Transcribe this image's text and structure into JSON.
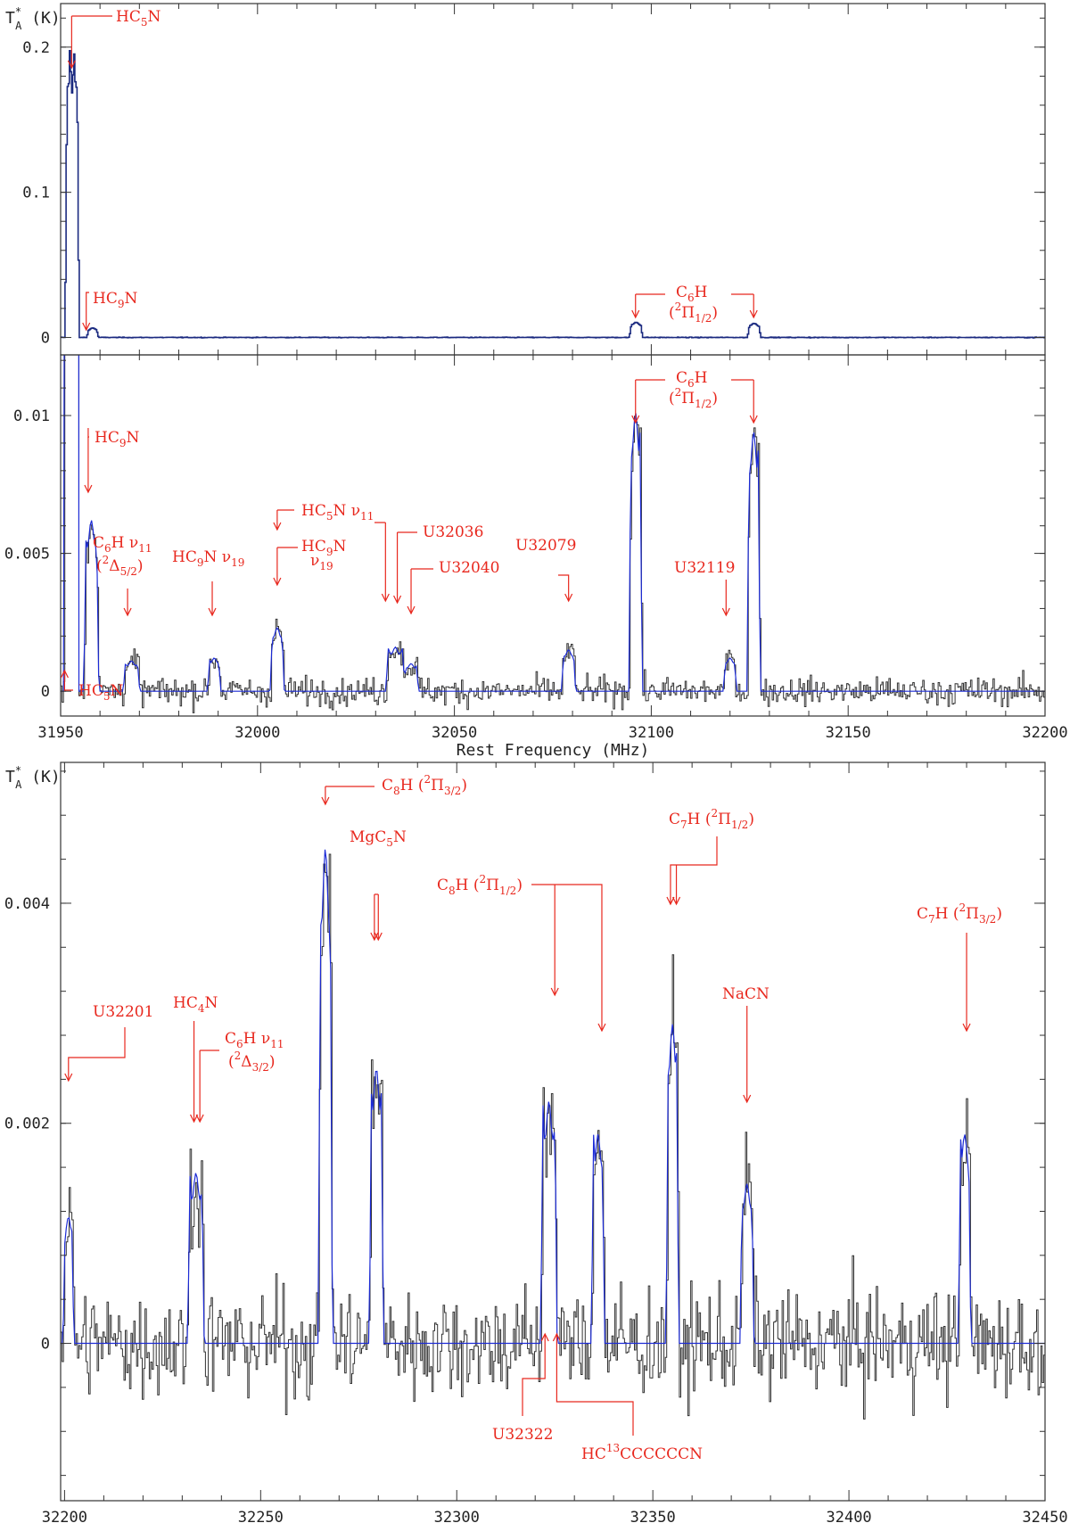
{
  "chart_data": [
    {
      "type": "line",
      "panel": "top",
      "ylabel": "T*A (K)",
      "xlim": [
        31950,
        32200
      ],
      "ylim": [
        -0.012,
        0.23
      ],
      "yticks": [
        0,
        0.1,
        0.2
      ],
      "ytick_labels": [
        "0",
        "0.1",
        "0.2"
      ],
      "series": [
        {
          "lines": [
            {
              "center": 31952.8,
              "width": 2.4,
              "peak": 0.205,
              "dip": 0.13
            },
            {
              "center": 31958,
              "width": 1.8,
              "peak": 0.0065
            },
            {
              "center": 32096,
              "width": 2.2,
              "peak": 0.0105
            },
            {
              "center": 32126,
              "width": 2.2,
              "peak": 0.0098
            }
          ]
        }
      ],
      "annotations": [
        {
          "text": "HC5N",
          "x": 31952.8
        },
        {
          "text": "HC9N",
          "x": 31956.5
        },
        {
          "text": "C6H (2Π1/2)",
          "x": [
            32096,
            32126
          ]
        }
      ],
      "grid": false
    },
    {
      "type": "line",
      "panel": "middle",
      "xlabel": "Rest Frequency (MHz)",
      "xlim": [
        31950,
        32200
      ],
      "ylim": [
        -0.0009,
        0.0122
      ],
      "xticks": [
        31950,
        32000,
        32050,
        32100,
        32150,
        32200
      ],
      "xtick_labels": [
        "31950",
        "32000",
        "32050",
        "32100",
        "32150",
        "32200"
      ],
      "yticks": [
        0,
        0.005,
        0.01
      ],
      "ytick_labels": [
        "0",
        "0.005",
        "0.01"
      ],
      "series": [
        {
          "lines": [
            {
              "center": 31952.8,
              "width": 2.4,
              "peak": 0.2
            },
            {
              "center": 31957.8,
              "width": 2.6,
              "peak": 0.0062
            },
            {
              "center": 31968,
              "width": 3.0,
              "peak": 0.0011
            },
            {
              "center": 31989,
              "width": 2.2,
              "peak": 0.0012
            },
            {
              "center": 32005,
              "width": 2.4,
              "peak": 0.0023
            },
            {
              "center": 32035,
              "width": 3.6,
              "peak": 0.0016
            },
            {
              "center": 32039,
              "width": 2.6,
              "peak": 0.001
            },
            {
              "center": 32079,
              "width": 2.4,
              "peak": 0.0015
            },
            {
              "center": 32096,
              "width": 2.2,
              "peak": 0.0101
            },
            {
              "center": 32120,
              "width": 2.2,
              "peak": 0.0012
            },
            {
              "center": 32126,
              "width": 2.2,
              "peak": 0.0094
            }
          ]
        }
      ],
      "annotations": [
        {
          "text": "HC9N",
          "x": 31957
        },
        {
          "text": "HC5N",
          "x": 31951
        },
        {
          "text": "C6H ν11 (2Δ5/2)",
          "x": 31966.5
        },
        {
          "text": "HC9N ν19",
          "x": 31988.5
        },
        {
          "text": "HC5N ν11",
          "x": 32005
        },
        {
          "text": "HC9N ν19",
          "x": 32005
        },
        {
          "text": "HC5N ν11",
          "x": 32032.5
        },
        {
          "text": "U32036",
          "x": 32035.5
        },
        {
          "text": "U32040",
          "x": 32039
        },
        {
          "text": "U32079",
          "x": 32079
        },
        {
          "text": "C6H (2Π1/2)",
          "x": [
            32096,
            32126
          ]
        },
        {
          "text": "U32119",
          "x": 32119
        }
      ],
      "grid": false
    },
    {
      "type": "line",
      "panel": "bottom",
      "ylabel": "T*A (K)",
      "xlabel": "Rest Frequency (MHz)",
      "xlim": [
        32199,
        32450
      ],
      "ylim": [
        -0.00143,
        0.00528
      ],
      "xticks": [
        32200,
        32250,
        32300,
        32350,
        32400,
        32450
      ],
      "xtick_labels": [
        "32200",
        "32250",
        "32300",
        "32350",
        "32400",
        "32450"
      ],
      "yticks": [
        0,
        0.002,
        0.004
      ],
      "ytick_labels": [
        "0",
        "0.002",
        "0.004"
      ],
      "series": [
        {
          "lines": [
            {
              "center": 32201,
              "width": 1.6,
              "peak": 0.00115
            },
            {
              "center": 32233.5,
              "width": 3.0,
              "peak": 0.00155
            },
            {
              "center": 32266.5,
              "width": 2.4,
              "peak": 0.0045
            },
            {
              "center": 32279.5,
              "width": 2.4,
              "peak": 0.0025
            },
            {
              "center": 32323.5,
              "width": 3.0,
              "peak": 0.0022
            },
            {
              "center": 32336,
              "width": 2.2,
              "peak": 0.0019
            },
            {
              "center": 32355,
              "width": 2.0,
              "peak": 0.0029
            },
            {
              "center": 32374,
              "width": 2.4,
              "peak": 0.00145
            },
            {
              "center": 32429.5,
              "width": 2.0,
              "peak": 0.0019
            }
          ]
        }
      ],
      "annotations": [
        {
          "text": "U32201",
          "x": 32201
        },
        {
          "text": "HC4N",
          "x": 32233
        },
        {
          "text": "C6H ν11 (2Δ3/2)",
          "x": 32234.5
        },
        {
          "text": "C8H (2Π3/2)",
          "x": 32266.5
        },
        {
          "text": "MgC5N",
          "x": [
            32279,
            32280
          ]
        },
        {
          "text": "C8H (2Π1/2)",
          "x": [
            32325,
            32337
          ]
        },
        {
          "text": "C7H (2Π1/2)",
          "x": [
            32354.5,
            32356
          ]
        },
        {
          "text": "NaCN",
          "x": 32374
        },
        {
          "text": "C7H (2Π3/2)",
          "x": 32430
        },
        {
          "text": "U32322",
          "x": 32322.5
        },
        {
          "text": "HC13CCCCCCN",
          "x": 32325.5
        }
      ],
      "grid": false
    }
  ]
}
